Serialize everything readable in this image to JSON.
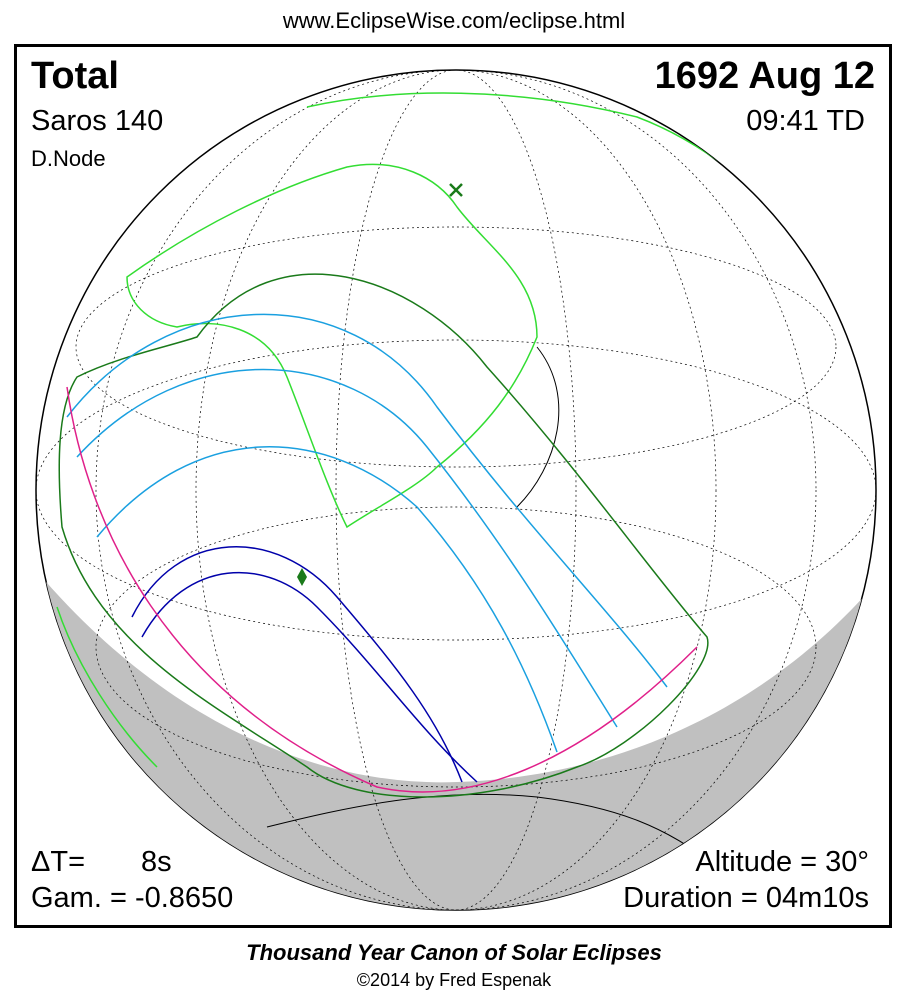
{
  "header": {
    "url": "www.EclipseWise.com/eclipse.html"
  },
  "info": {
    "type": "Total",
    "date": "1692 Aug 12",
    "saros": "Saros 140",
    "time": "09:41 TD",
    "node": "D.Node"
  },
  "stats": {
    "delta_t_label": "ΔT=",
    "delta_t_value": "8s",
    "gamma": "Gam. = -0.8650",
    "altitude": "Altitude = 30°",
    "duration": "Duration = 04m10s"
  },
  "footer": {
    "title": "Thousand Year Canon of Solar Eclipses",
    "credit": "©2014 by Fred Espenak"
  }
}
